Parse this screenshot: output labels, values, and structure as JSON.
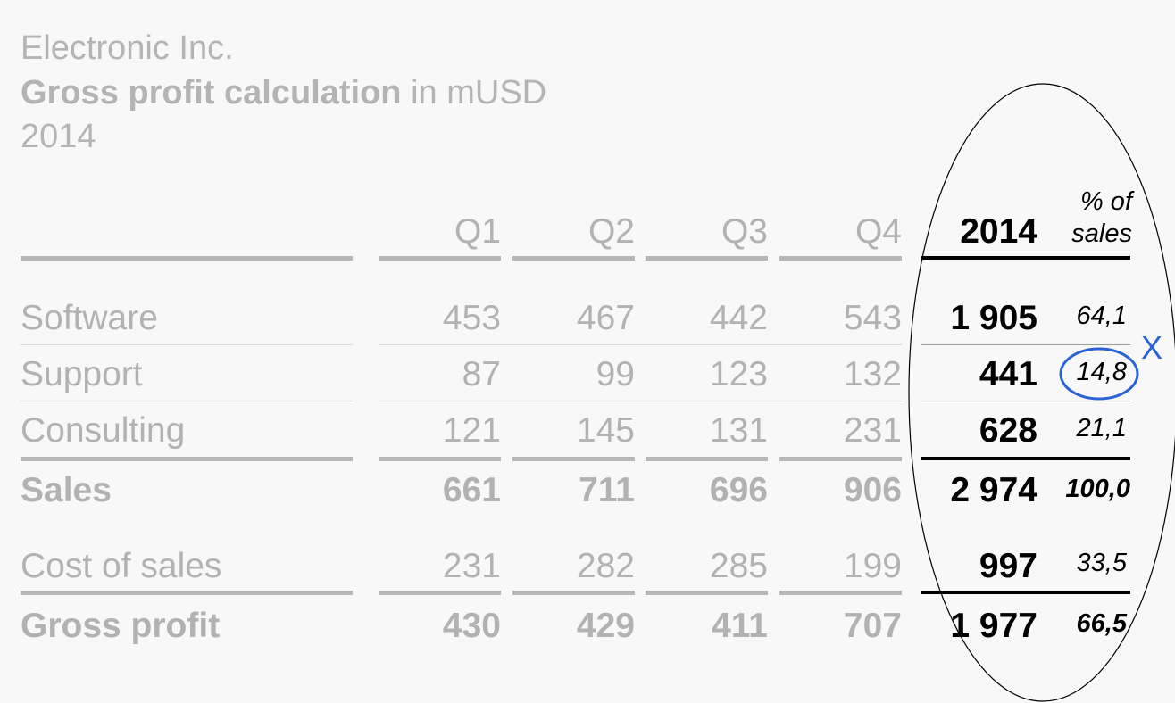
{
  "header": {
    "company": "Electronic Inc.",
    "title_bold": "Gross profit calculation",
    "title_rest": " in mUSD",
    "year": "2014"
  },
  "columns": {
    "q1": "Q1",
    "q2": "Q2",
    "q3": "Q3",
    "q4": "Q4",
    "total": "2014",
    "pct_line1": "% of",
    "pct_line2": "sales"
  },
  "rows": [
    {
      "label": "Software",
      "q1": "453",
      "q2": "467",
      "q3": "442",
      "q4": "543",
      "total": "1 905",
      "pct": "64,1"
    },
    {
      "label": "Support",
      "q1": "87",
      "q2": "99",
      "q3": "123",
      "q4": "132",
      "total": "441",
      "pct": "14,8"
    },
    {
      "label": "Consulting",
      "q1": "121",
      "q2": "145",
      "q3": "131",
      "q4": "231",
      "total": "628",
      "pct": "21,1"
    },
    {
      "label": "Sales",
      "q1": "661",
      "q2": "711",
      "q3": "696",
      "q4": "906",
      "total": "2 974",
      "pct": "100,0"
    },
    {
      "label": "Cost of sales",
      "q1": "231",
      "q2": "282",
      "q3": "285",
      "q4": "199",
      "total": "997",
      "pct": "33,5"
    },
    {
      "label": "Gross profit",
      "q1": "430",
      "q2": "429",
      "q3": "411",
      "q4": "707",
      "total": "1 977",
      "pct": "66,5"
    }
  ],
  "annotation": {
    "mark": "X",
    "ellipse_color": "#000000",
    "circle_color": "#2a63d6"
  }
}
